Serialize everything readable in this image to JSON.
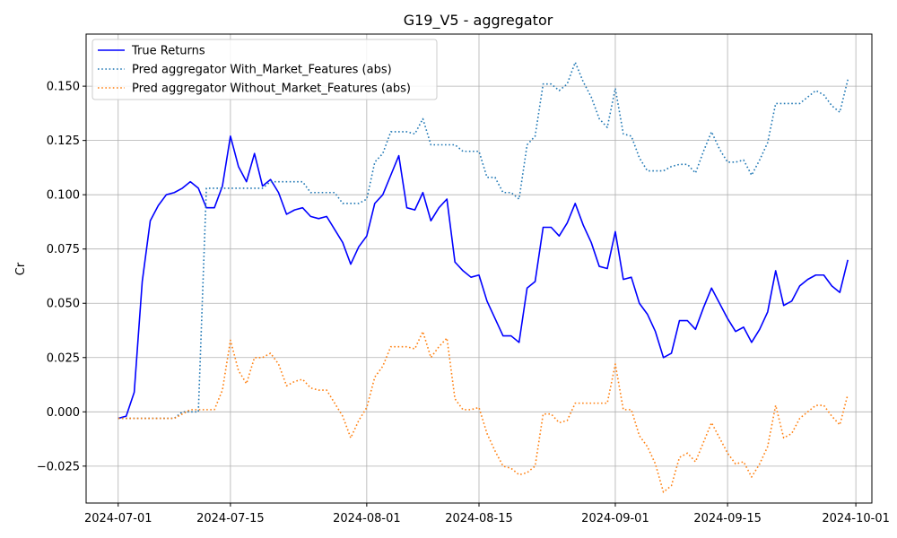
{
  "chart_data": {
    "type": "line",
    "title": "G19_V5 - aggregator",
    "xlabel": "",
    "ylabel": "Cr",
    "grid": true,
    "legend_position": "top-left",
    "xlim": [
      "2024-06-27",
      "2024-10-03"
    ],
    "ylim": [
      -0.042,
      0.174
    ],
    "x_ticks": [
      "2024-07-01",
      "2024-07-15",
      "2024-08-01",
      "2024-08-15",
      "2024-09-01",
      "2024-09-15",
      "2024-10-01"
    ],
    "y_ticks": [
      "−0.025",
      "0.000",
      "0.025",
      "0.050",
      "0.075",
      "0.100",
      "0.125",
      "0.150"
    ],
    "y_tick_values": [
      -0.025,
      0.0,
      0.025,
      0.05,
      0.075,
      0.1,
      0.125,
      0.15
    ],
    "x": [
      "2024-07-01",
      "2024-07-02",
      "2024-07-03",
      "2024-07-04",
      "2024-07-05",
      "2024-07-06",
      "2024-07-07",
      "2024-07-08",
      "2024-07-09",
      "2024-07-10",
      "2024-07-11",
      "2024-07-12",
      "2024-07-13",
      "2024-07-14",
      "2024-07-15",
      "2024-07-16",
      "2024-07-17",
      "2024-07-18",
      "2024-07-19",
      "2024-07-20",
      "2024-07-21",
      "2024-07-22",
      "2024-07-23",
      "2024-07-24",
      "2024-07-25",
      "2024-07-26",
      "2024-07-27",
      "2024-07-28",
      "2024-07-29",
      "2024-07-30",
      "2024-07-31",
      "2024-08-01",
      "2024-08-02",
      "2024-08-03",
      "2024-08-04",
      "2024-08-05",
      "2024-08-06",
      "2024-08-07",
      "2024-08-08",
      "2024-08-09",
      "2024-08-10",
      "2024-08-11",
      "2024-08-12",
      "2024-08-13",
      "2024-08-14",
      "2024-08-15",
      "2024-08-16",
      "2024-08-17",
      "2024-08-18",
      "2024-08-19",
      "2024-08-20",
      "2024-08-21",
      "2024-08-22",
      "2024-08-23",
      "2024-08-24",
      "2024-08-25",
      "2024-08-26",
      "2024-08-27",
      "2024-08-28",
      "2024-08-29",
      "2024-08-30",
      "2024-08-31",
      "2024-09-01",
      "2024-09-02",
      "2024-09-03",
      "2024-09-04",
      "2024-09-05",
      "2024-09-06",
      "2024-09-07",
      "2024-09-08",
      "2024-09-09",
      "2024-09-10",
      "2024-09-11",
      "2024-09-12",
      "2024-09-13",
      "2024-09-14",
      "2024-09-15",
      "2024-09-16",
      "2024-09-17",
      "2024-09-18",
      "2024-09-19",
      "2024-09-20",
      "2024-09-21",
      "2024-09-22",
      "2024-09-23",
      "2024-09-24",
      "2024-09-25",
      "2024-09-26",
      "2024-09-27",
      "2024-09-28",
      "2024-09-29",
      "2024-09-30"
    ],
    "series": [
      {
        "name": "True Returns",
        "color": "#0000ff",
        "style": "solid",
        "values": [
          -0.003,
          -0.002,
          0.009,
          0.06,
          0.088,
          0.095,
          0.1,
          0.101,
          0.103,
          0.106,
          0.103,
          0.094,
          0.094,
          0.104,
          0.127,
          0.113,
          0.106,
          0.119,
          0.104,
          0.107,
          0.101,
          0.091,
          0.093,
          0.094,
          0.09,
          0.089,
          0.09,
          0.084,
          0.078,
          0.068,
          0.076,
          0.081,
          0.096,
          0.1,
          0.109,
          0.118,
          0.094,
          0.093,
          0.101,
          0.088,
          0.094,
          0.098,
          0.069,
          0.065,
          0.062,
          0.063,
          0.051,
          0.043,
          0.035,
          0.035,
          0.032,
          0.057,
          0.06,
          0.085,
          0.085,
          0.081,
          0.087,
          0.096,
          0.086,
          0.078,
          0.067,
          0.066,
          0.083,
          0.061,
          0.062,
          0.05,
          0.045,
          0.037,
          0.025,
          0.027,
          0.042,
          0.042,
          0.038,
          0.048,
          0.057,
          0.05,
          0.043,
          0.037,
          0.039,
          0.032,
          0.038,
          0.046,
          0.065,
          0.049,
          0.051,
          0.058,
          0.061,
          0.063,
          0.063,
          0.058,
          0.055,
          0.07
        ]
      },
      {
        "name": "Pred aggregator With_Market_Features (abs)",
        "color": "#1f77b4",
        "style": "dotted",
        "values": [
          -0.003,
          -0.003,
          -0.003,
          -0.003,
          -0.003,
          -0.003,
          -0.003,
          -0.003,
          0.0,
          0.0,
          0.0,
          0.103,
          0.103,
          0.103,
          0.103,
          0.103,
          0.103,
          0.103,
          0.103,
          0.106,
          0.106,
          0.106,
          0.106,
          0.106,
          0.101,
          0.101,
          0.101,
          0.101,
          0.096,
          0.096,
          0.096,
          0.098,
          0.115,
          0.119,
          0.129,
          0.129,
          0.129,
          0.128,
          0.135,
          0.123,
          0.123,
          0.123,
          0.123,
          0.12,
          0.12,
          0.12,
          0.108,
          0.108,
          0.101,
          0.101,
          0.098,
          0.123,
          0.127,
          0.151,
          0.151,
          0.148,
          0.151,
          0.161,
          0.152,
          0.145,
          0.135,
          0.131,
          0.149,
          0.128,
          0.127,
          0.117,
          0.111,
          0.111,
          0.111,
          0.113,
          0.114,
          0.114,
          0.11,
          0.12,
          0.129,
          0.121,
          0.115,
          0.115,
          0.116,
          0.109,
          0.116,
          0.124,
          0.142,
          0.142,
          0.142,
          0.142,
          0.145,
          0.148,
          0.146,
          0.141,
          0.138,
          0.153
        ]
      },
      {
        "name": "Pred aggregator Without_Market_Features (abs)",
        "color": "#ff7f0e",
        "style": "dotted",
        "values": [
          -0.003,
          -0.003,
          -0.003,
          -0.003,
          -0.003,
          -0.003,
          -0.003,
          -0.003,
          -0.001,
          0.001,
          0.001,
          0.001,
          0.001,
          0.01,
          0.033,
          0.019,
          0.013,
          0.025,
          0.025,
          0.027,
          0.022,
          0.012,
          0.014,
          0.015,
          0.011,
          0.01,
          0.01,
          0.004,
          -0.002,
          -0.012,
          -0.004,
          0.002,
          0.016,
          0.021,
          0.03,
          0.03,
          0.03,
          0.029,
          0.037,
          0.025,
          0.03,
          0.034,
          0.006,
          0.001,
          0.001,
          0.002,
          -0.01,
          -0.018,
          -0.025,
          -0.026,
          -0.029,
          -0.028,
          -0.025,
          -0.001,
          -0.001,
          -0.005,
          -0.004,
          0.004,
          0.004,
          0.004,
          0.004,
          0.004,
          0.022,
          0.001,
          0.001,
          -0.011,
          -0.016,
          -0.024,
          -0.037,
          -0.034,
          -0.021,
          -0.019,
          -0.023,
          -0.014,
          -0.005,
          -0.012,
          -0.019,
          -0.024,
          -0.023,
          -0.03,
          -0.024,
          -0.016,
          0.003,
          -0.012,
          -0.01,
          -0.003,
          0.0,
          0.003,
          0.003,
          -0.002,
          -0.006,
          0.008
        ]
      }
    ]
  }
}
